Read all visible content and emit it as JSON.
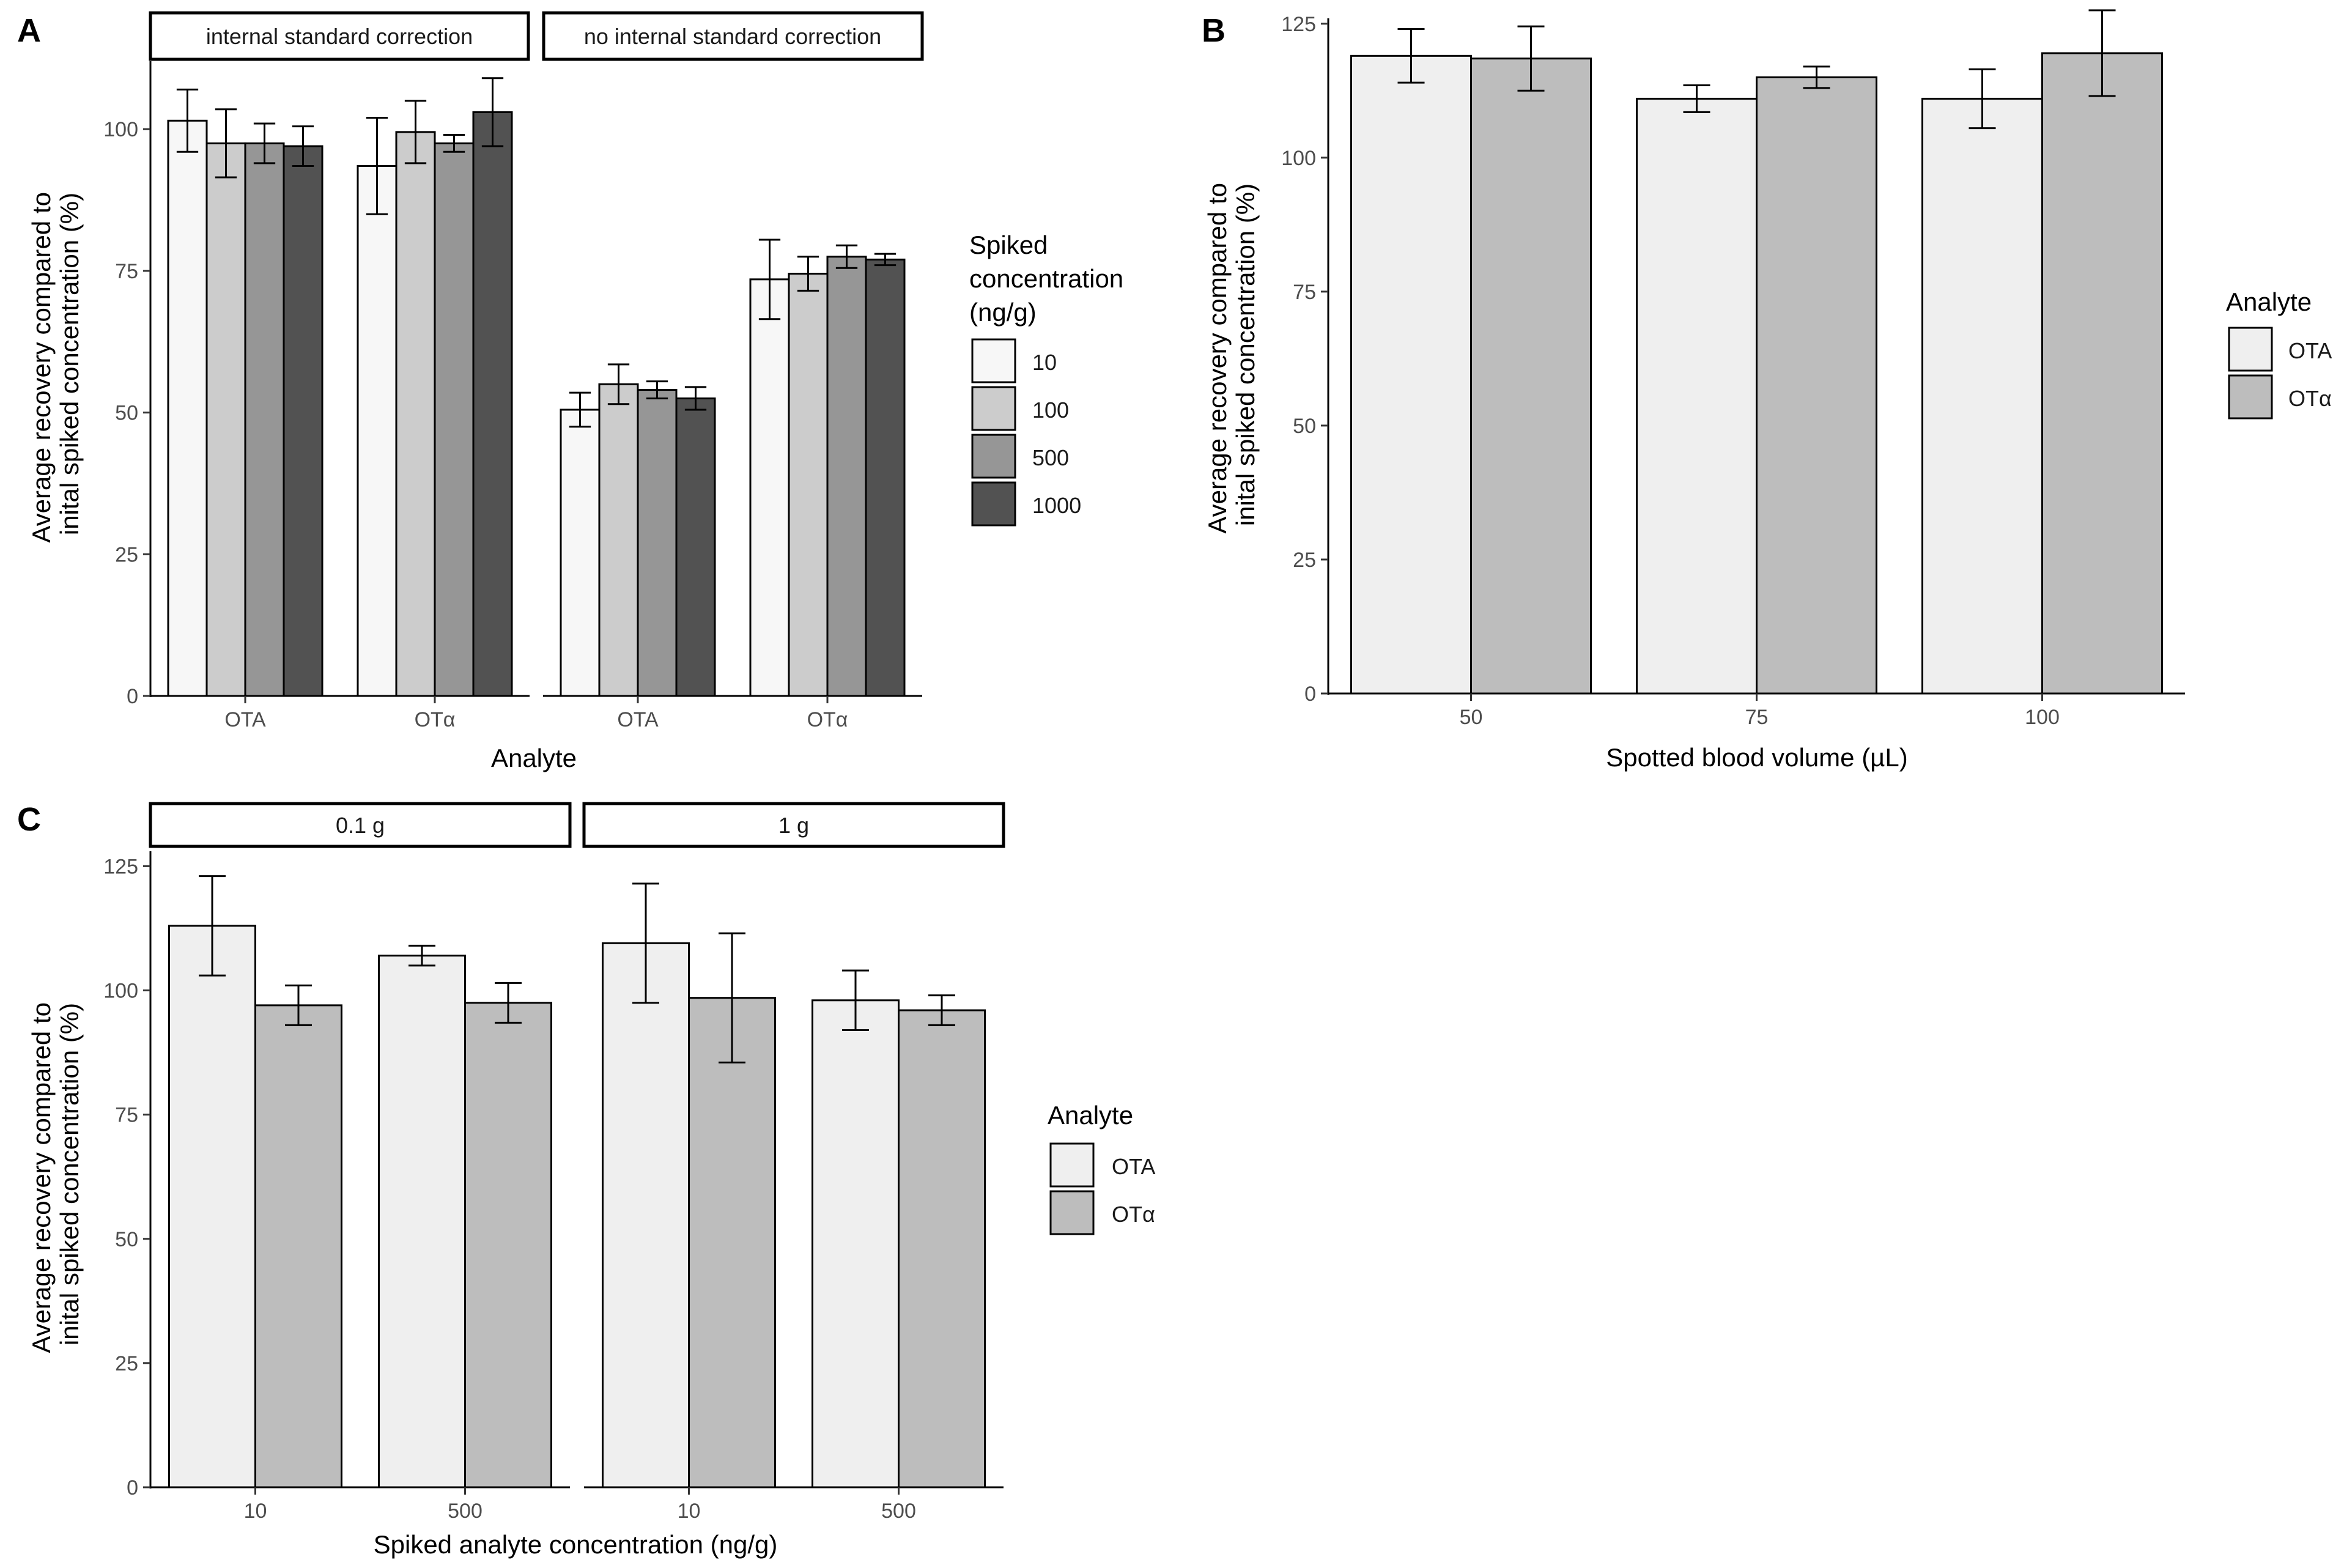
{
  "panels": [
    {
      "tag": "A",
      "chart_data": {
        "type": "bar",
        "facets": [
          "internal standard correction",
          "no internal standard correction"
        ],
        "categories": [
          "OTA",
          "OTα"
        ],
        "xlabel": "Analyte",
        "ylabel": [
          "Average recovery compared to",
          "inital spiked concentration (%)"
        ],
        "ylim": [
          0,
          112
        ],
        "yticks": [
          0,
          25,
          50,
          75,
          100
        ],
        "legend": {
          "title": [
            "Spiked",
            "concentration",
            "(ng/g)"
          ],
          "entries": [
            "10",
            "100",
            "500",
            "1000"
          ],
          "colors": [
            "#f7f7f7",
            "#cccccc",
            "#969696",
            "#525252"
          ]
        },
        "series": [
          {
            "name": "10",
            "facet_values": [
              [
                101.5,
                93.5
              ],
              [
                50.5,
                73.5
              ]
            ],
            "errors": [
              [
                5.5,
                8.5
              ],
              [
                3.0,
                7.0
              ]
            ]
          },
          {
            "name": "100",
            "facet_values": [
              [
                97.5,
                99.5
              ],
              [
                55.0,
                74.5
              ]
            ],
            "errors": [
              [
                6.0,
                5.5
              ],
              [
                3.5,
                3.0
              ]
            ]
          },
          {
            "name": "500",
            "facet_values": [
              [
                97.5,
                97.5
              ],
              [
                54.0,
                77.5
              ]
            ],
            "errors": [
              [
                3.5,
                1.5
              ],
              [
                1.5,
                2.0
              ]
            ]
          },
          {
            "name": "1000",
            "facet_values": [
              [
                97.0,
                103.0
              ],
              [
                52.5,
                77.0
              ]
            ],
            "errors": [
              [
                3.5,
                6.0
              ],
              [
                2.0,
                1.0
              ]
            ]
          }
        ]
      }
    },
    {
      "tag": "B",
      "chart_data": {
        "type": "bar",
        "categories": [
          "50",
          "75",
          "100"
        ],
        "xlabel": "Spotted blood volume (µL)",
        "ylabel": [
          "Average recovery compared to",
          "inital spiked concentration (%)"
        ],
        "ylim": [
          0,
          126
        ],
        "yticks": [
          0,
          25,
          50,
          75,
          100,
          125
        ],
        "legend": {
          "title": [
            "Analyte"
          ],
          "entries": [
            "OTA",
            "OTα"
          ],
          "colors": [
            "#efefef",
            "#bdbdbd"
          ]
        },
        "series": [
          {
            "name": "OTA",
            "values": [
              119.0,
              111.0,
              111.0
            ],
            "errors": [
              5.0,
              2.5,
              5.5
            ]
          },
          {
            "name": "OTα",
            "values": [
              118.5,
              115.0,
              119.5
            ],
            "errors": [
              6.0,
              2.0,
              8.0
            ]
          }
        ]
      }
    },
    {
      "tag": "C",
      "chart_data": {
        "type": "bar",
        "facets": [
          "0.1 g",
          "1 g"
        ],
        "categories": [
          "10",
          "500"
        ],
        "xlabel": "Spiked analyte concentration (ng/g)",
        "ylabel": [
          "Average recovery compared to",
          "inital spiked concentration (%)"
        ],
        "ylim": [
          0,
          128
        ],
        "yticks": [
          0,
          25,
          50,
          75,
          100,
          125
        ],
        "legend": {
          "title": [
            "Analyte"
          ],
          "entries": [
            "OTA",
            "OTα"
          ],
          "colors": [
            "#efefef",
            "#bdbdbd"
          ]
        },
        "series": [
          {
            "name": "OTA",
            "facet_values": [
              [
                113.0,
                107.0
              ],
              [
                109.5,
                98.0
              ]
            ],
            "errors": [
              [
                10.0,
                2.0
              ],
              [
                12.0,
                6.0
              ]
            ]
          },
          {
            "name": "OTα",
            "facet_values": [
              [
                97.0,
                97.5
              ],
              [
                98.5,
                96.0
              ]
            ],
            "errors": [
              [
                4.0,
                4.0
              ],
              [
                13.0,
                3.0
              ]
            ]
          }
        ]
      }
    }
  ]
}
